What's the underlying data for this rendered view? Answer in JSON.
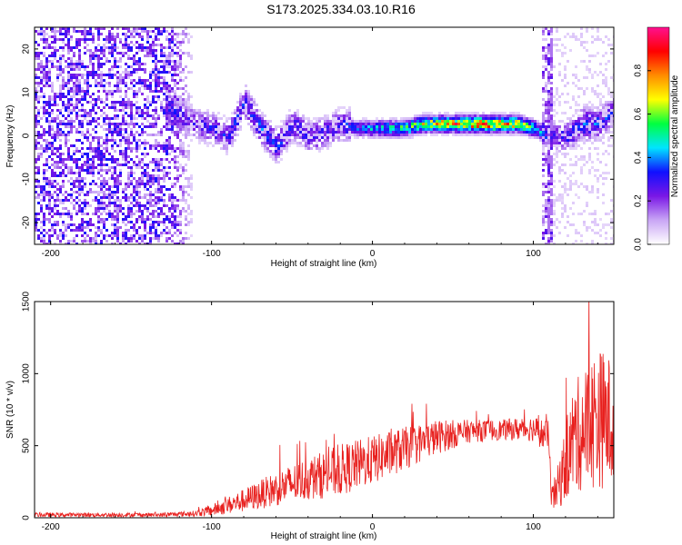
{
  "title": "S173.2025.334.03.10.R16",
  "chart_data": [
    {
      "type": "heatmap",
      "xlabel": "Height of straight line (km)",
      "ylabel": "Frequency (Hz)",
      "xlim": [
        -210,
        150
      ],
      "ylim": [
        -25,
        25
      ],
      "xticks": [
        -200,
        -100,
        0,
        100
      ],
      "xtick_labels": [
        "-200",
        "-100",
        "0",
        "100"
      ],
      "yticks": [
        -20,
        -10,
        0,
        10,
        20
      ],
      "ytick_labels": [
        "-20",
        "-10",
        "0",
        "10",
        "20"
      ],
      "colorbar": {
        "label": "Normalized spectral amplitude",
        "range": [
          0,
          1
        ],
        "ticks": [
          "0.0",
          "0.2",
          "0.4",
          "0.6",
          "0.8"
        ],
        "tick_values": [
          0.0,
          0.2,
          0.4,
          0.6,
          0.8
        ],
        "colors": [
          "#ffffff",
          "#c9a6f5",
          "#7a17e6",
          "#1010ff",
          "#00e5ff",
          "#00ff40",
          "#ffff00",
          "#ff8c00",
          "#ff0000",
          "#ff1090"
        ]
      },
      "signal_track": [
        {
          "x": -125,
          "f": 6,
          "amp": 0.3
        },
        {
          "x": -110,
          "f": 3,
          "amp": 0.25
        },
        {
          "x": -100,
          "f": 2,
          "amp": 0.3
        },
        {
          "x": -90,
          "f": 0,
          "amp": 0.3
        },
        {
          "x": -80,
          "f": 8,
          "amp": 0.35
        },
        {
          "x": -70,
          "f": 2,
          "amp": 0.35
        },
        {
          "x": -60,
          "f": -2,
          "amp": 0.35
        },
        {
          "x": -50,
          "f": 3,
          "amp": 0.3
        },
        {
          "x": -40,
          "f": 0,
          "amp": 0.3
        },
        {
          "x": -30,
          "f": 1,
          "amp": 0.3
        },
        {
          "x": -20,
          "f": 3,
          "amp": 0.3
        },
        {
          "x": -10,
          "f": 2,
          "amp": 0.35
        },
        {
          "x": 0,
          "f": 2,
          "amp": 0.45
        },
        {
          "x": 10,
          "f": 2,
          "amp": 0.5
        },
        {
          "x": 20,
          "f": 2,
          "amp": 0.55
        },
        {
          "x": 30,
          "f": 3,
          "amp": 0.65
        },
        {
          "x": 40,
          "f": 3,
          "amp": 0.75
        },
        {
          "x": 50,
          "f": 3,
          "amp": 0.8
        },
        {
          "x": 60,
          "f": 3,
          "amp": 0.8
        },
        {
          "x": 70,
          "f": 3,
          "amp": 0.85
        },
        {
          "x": 80,
          "f": 3,
          "amp": 0.8
        },
        {
          "x": 90,
          "f": 3,
          "amp": 0.7
        },
        {
          "x": 100,
          "f": 2,
          "amp": 0.5
        },
        {
          "x": 110,
          "f": 0,
          "amp": 0.25
        },
        {
          "x": 120,
          "f": 0,
          "amp": 0.3
        },
        {
          "x": 130,
          "f": 3,
          "amp": 0.35
        },
        {
          "x": 140,
          "f": 3,
          "amp": 0.35
        },
        {
          "x": 150,
          "f": 6,
          "amp": 0.3
        }
      ]
    },
    {
      "type": "line",
      "xlabel": "Height of straight line (km)",
      "ylabel": "SNR (10 * v/v)",
      "xlim": [
        -210,
        150
      ],
      "ylim": [
        0,
        1500
      ],
      "xticks": [
        -200,
        -100,
        0,
        100
      ],
      "xtick_labels": [
        "-200",
        "-100",
        "0",
        "100"
      ],
      "yticks": [
        0,
        500,
        1000,
        1500
      ],
      "ytick_labels": [
        "0",
        "500",
        "1000",
        "1500"
      ],
      "color": "#e8201e",
      "series": [
        {
          "name": "SNR",
          "envelope": [
            {
              "x": -210,
              "mean": 20,
              "noise": 15
            },
            {
              "x": -130,
              "mean": 20,
              "noise": 15
            },
            {
              "x": -110,
              "mean": 30,
              "noise": 20
            },
            {
              "x": -100,
              "mean": 50,
              "noise": 40
            },
            {
              "x": -80,
              "mean": 120,
              "noise": 80
            },
            {
              "x": -60,
              "mean": 200,
              "noise": 120
            },
            {
              "x": -40,
              "mean": 270,
              "noise": 150
            },
            {
              "x": -20,
              "mean": 330,
              "noise": 180
            },
            {
              "x": 0,
              "mean": 400,
              "noise": 170
            },
            {
              "x": 20,
              "mean": 480,
              "noise": 150
            },
            {
              "x": 40,
              "mean": 560,
              "noise": 120
            },
            {
              "x": 60,
              "mean": 600,
              "noise": 80
            },
            {
              "x": 80,
              "mean": 610,
              "noise": 70
            },
            {
              "x": 100,
              "mean": 620,
              "noise": 90
            },
            {
              "x": 110,
              "mean": 550,
              "noise": 120
            },
            {
              "x": 111,
              "mean": 120,
              "noise": 80
            },
            {
              "x": 115,
              "mean": 200,
              "noise": 150
            },
            {
              "x": 125,
              "mean": 550,
              "noise": 380
            },
            {
              "x": 140,
              "mean": 700,
              "noise": 500
            },
            {
              "x": 150,
              "mean": 650,
              "noise": 450
            }
          ]
        }
      ]
    }
  ]
}
